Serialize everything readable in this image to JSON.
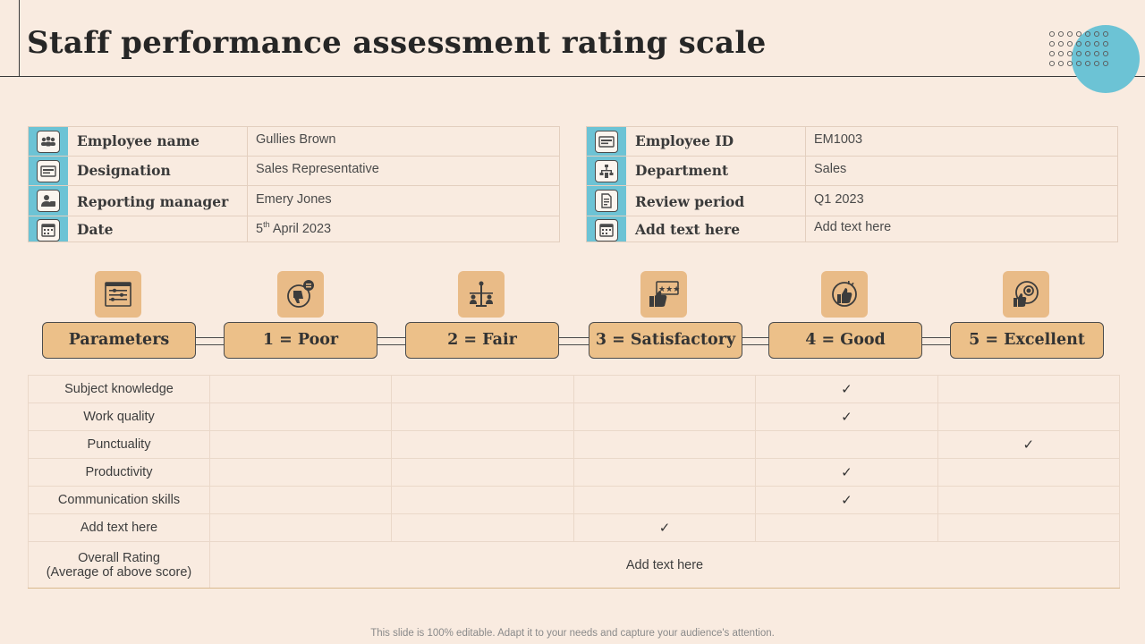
{
  "title": "Staff performance assessment rating scale",
  "left_info": [
    {
      "label": "Employee name",
      "value": "Gullies Brown",
      "icon": "team-icon"
    },
    {
      "label": "Designation",
      "value": "Sales Representative",
      "icon": "id-card-icon"
    },
    {
      "label": "Reporting manager",
      "value": "Emery Jones",
      "icon": "manager-icon"
    },
    {
      "label": "Date",
      "value_pre": "5",
      "value_sup": "th",
      "value_post": " April 2023",
      "icon": "calendar-icon"
    }
  ],
  "right_info": [
    {
      "label": "Employee ID",
      "value": "EM1003",
      "icon": "id-card-icon"
    },
    {
      "label": "Department",
      "value": "Sales",
      "icon": "org-chart-icon"
    },
    {
      "label": "Review period",
      "value": "Q1 2023",
      "icon": "document-icon"
    },
    {
      "label": "Add text here",
      "value": "Add text here",
      "icon": "calendar-icon"
    }
  ],
  "scale": [
    {
      "label": "Parameters",
      "icon": "parameters-icon"
    },
    {
      "label": "1 = Poor",
      "icon": "thumbs-down-icon"
    },
    {
      "label": "2 = Fair",
      "icon": "balance-icon"
    },
    {
      "label": "3 = Satisfactory",
      "icon": "rating-stars-icon"
    },
    {
      "label": "4 = Good",
      "icon": "thumbs-up-icon"
    },
    {
      "label": "5 = Excellent",
      "icon": "award-icon"
    }
  ],
  "parameters": [
    {
      "name": "Subject knowledge",
      "rating": 4
    },
    {
      "name": "Work quality",
      "rating": 4
    },
    {
      "name": "Punctuality",
      "rating": 5
    },
    {
      "name": "Productivity",
      "rating": 4
    },
    {
      "name": "Communication skills",
      "rating": 4
    },
    {
      "name": "Add text here",
      "rating": 3
    }
  ],
  "check_mark": "✓",
  "overall": {
    "label_line1": "Overall Rating",
    "label_line2": "(Average of above score)",
    "value": "Add text here"
  },
  "footer": "This slide is 100% editable. Adapt it to your needs and capture your audience's attention.",
  "colors": {
    "accent_blue": "#6cc3d5",
    "accent_tan": "#ecc089",
    "background": "#f9ebe0"
  }
}
